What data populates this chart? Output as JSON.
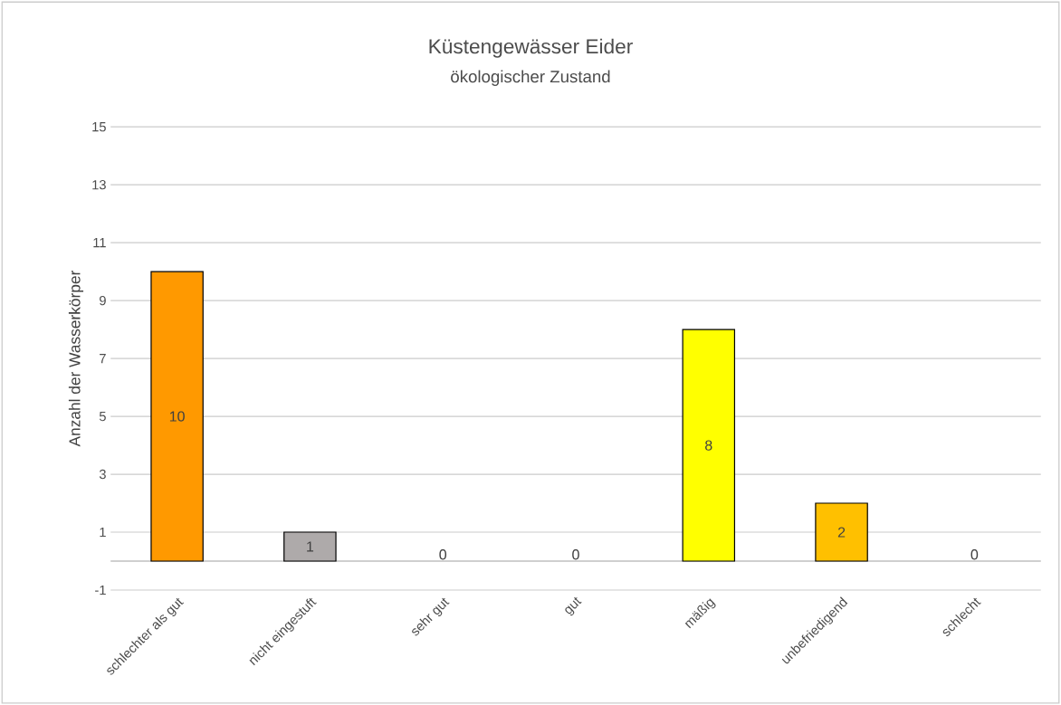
{
  "chart_data": {
    "type": "bar",
    "title": "Küstengewässer Eider",
    "subtitle": "ökologischer Zustand",
    "ylabel": "Anzahl der Wasserkörper",
    "categories": [
      "schlechter als gut",
      "nicht eingestuft",
      "sehr gut",
      "gut",
      "mäßig",
      "unbefriedigend",
      "schlecht"
    ],
    "values": [
      10,
      1,
      0,
      0,
      8,
      2,
      0
    ],
    "colors": [
      "#ff9900",
      "#aeaaaa",
      null,
      null,
      "#ffff00",
      "#ffc000",
      null
    ],
    "ylim": [
      -1,
      15
    ],
    "yticks": [
      -1,
      1,
      3,
      5,
      7,
      9,
      11,
      13,
      15
    ],
    "grid": "y",
    "data_labels": true
  }
}
